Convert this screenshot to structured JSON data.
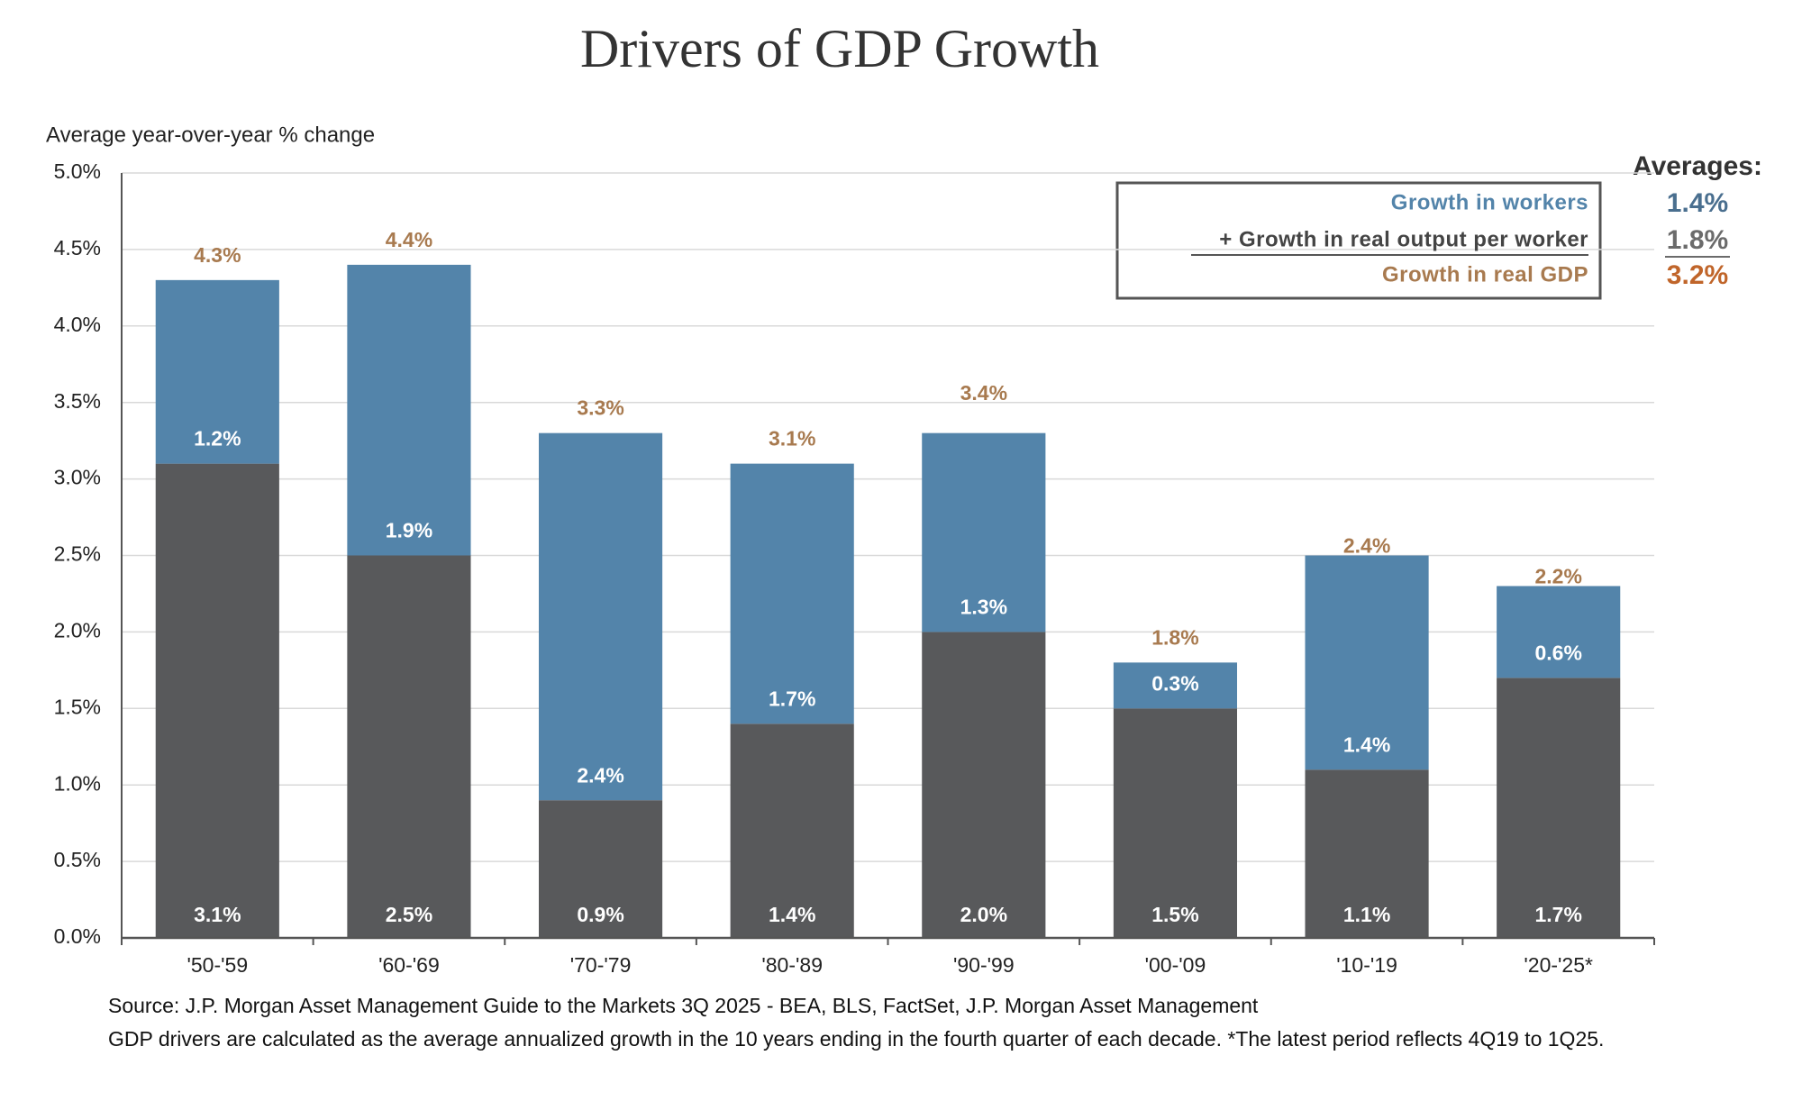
{
  "chart_data": {
    "type": "stacked_bar",
    "title": "Drivers of GDP Growth",
    "y_label": "Average year-over-year % change",
    "categories": [
      "'50-'59",
      "'60-'69",
      "'70-'79",
      "'80-'89",
      "'90-'99",
      "'00-'09",
      "'10-'19",
      "'20-'25*"
    ],
    "series": [
      {
        "name": "+ Growth in real output per worker",
        "color": "#58595b",
        "values": [
          3.1,
          2.5,
          0.9,
          1.4,
          2.0,
          1.5,
          1.1,
          1.7
        ],
        "value_labels": [
          "3.1%",
          "2.5%",
          "0.9%",
          "1.4%",
          "2.0%",
          "1.5%",
          "1.1%",
          "1.7%"
        ],
        "average": 1.8,
        "average_label": "1.8%"
      },
      {
        "name": "Growth in workers",
        "color": "#5384aa",
        "values": [
          1.2,
          1.9,
          2.4,
          1.7,
          1.3,
          0.3,
          1.4,
          0.6
        ],
        "value_labels": [
          "1.2%",
          "1.9%",
          "2.4%",
          "1.7%",
          "1.3%",
          "0.3%",
          "1.4%",
          "0.6%"
        ],
        "average": 1.4,
        "average_label": "1.4%"
      }
    ],
    "total": {
      "name": "Growth in real GDP",
      "color": "#a87a4f",
      "values": [
        4.3,
        4.4,
        3.3,
        3.1,
        3.4,
        1.8,
        2.4,
        2.2
      ],
      "value_labels": [
        "4.3%",
        "4.4%",
        "3.3%",
        "3.1%",
        "3.4%",
        "1.8%",
        "2.4%",
        "2.2%"
      ],
      "average": 3.2,
      "average_label": "3.2%"
    },
    "averages_title": "Averages:",
    "ylim": [
      0,
      5
    ],
    "yticks": [
      {
        "value": 0,
        "label": "0.0%"
      },
      {
        "value": 0.5,
        "label": "0.5%"
      },
      {
        "value": 1,
        "label": "1.0%"
      },
      {
        "value": 1.5,
        "label": "1.5%"
      },
      {
        "value": 2,
        "label": "2.0%"
      },
      {
        "value": 2.5,
        "label": "2.5%"
      },
      {
        "value": 3,
        "label": "3.0%"
      },
      {
        "value": 3.5,
        "label": "3.5%"
      },
      {
        "value": 4,
        "label": "4.0%"
      },
      {
        "value": 4.5,
        "label": "4.5%"
      },
      {
        "value": 5,
        "label": "5.0%"
      }
    ],
    "grid": true,
    "notes": [
      "Source: J.P. Morgan Asset Management Guide to the Markets 3Q 2025 - BEA, BLS, FactSet, J.P. Morgan Asset Management",
      "GDP drivers are calculated as the average annualized growth in the 10 years ending in the fourth quarter of each decade. *The latest period reflects 4Q19 to 1Q25."
    ]
  }
}
